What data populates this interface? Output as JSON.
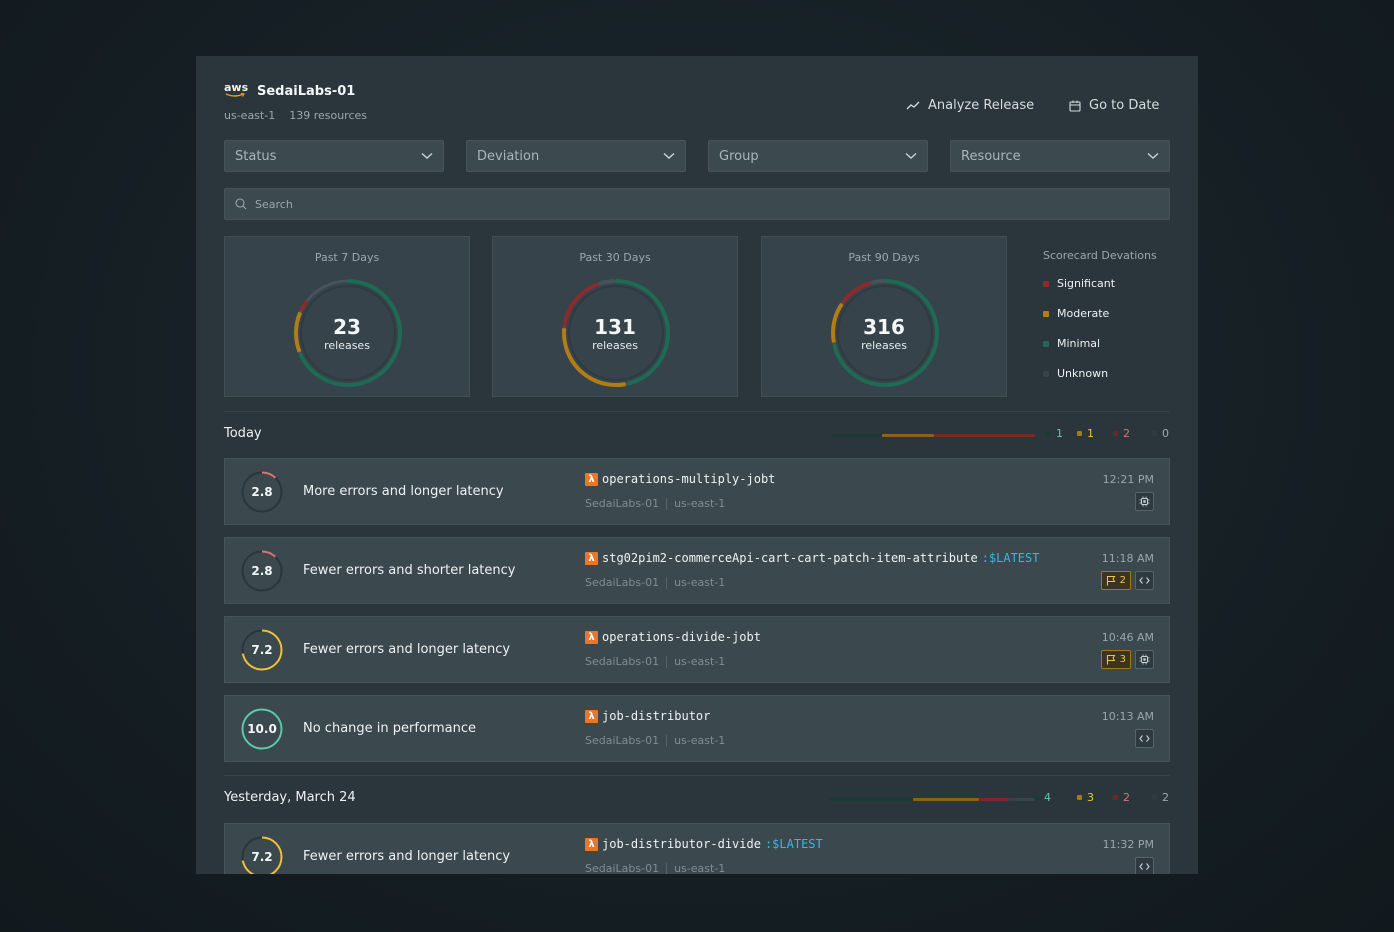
{
  "header": {
    "logo_text": "aws",
    "account_name": "SedaiLabs-01",
    "region": "us-east-1",
    "resources": "139 resources",
    "analyze_label": "Analyze Release",
    "goto_label": "Go to Date"
  },
  "filters": [
    {
      "label": "Status"
    },
    {
      "label": "Deviation"
    },
    {
      "label": "Group"
    },
    {
      "label": "Resource"
    }
  ],
  "search": {
    "placeholder": "Search"
  },
  "summary": [
    {
      "label": "Past 7 Days",
      "count": "23",
      "unit": "releases",
      "segments": {
        "minimal": 0.69,
        "moderate": 0.13,
        "significant": 0.04,
        "unknown": 0.0
      }
    },
    {
      "label": "Past 30 Days",
      "count": "131",
      "unit": "releases",
      "segments": {
        "minimal": 0.47,
        "moderate": 0.3,
        "significant": 0.18,
        "unknown": 0.05
      }
    },
    {
      "label": "Past 90 Days",
      "count": "316",
      "unit": "releases",
      "segments": {
        "minimal": 0.72,
        "moderate": 0.13,
        "significant": 0.11,
        "unknown": 0.04
      }
    }
  ],
  "legend": {
    "title": "Scorecard Devations",
    "items": [
      {
        "label": "Significant",
        "color": "#8b2b2b"
      },
      {
        "label": "Moderate",
        "color": "#b07d17"
      },
      {
        "label": "Minimal",
        "color": "#1e6b55"
      },
      {
        "label": "Unknown",
        "color": "#3a474d"
      }
    ]
  },
  "colors": {
    "significant": "#8b2b2b",
    "moderate": "#b07d17",
    "minimal": "#1e6b55",
    "unknown": "#45535a",
    "score_red": "#e0707a",
    "score_yellow": "#f0c23a",
    "score_green": "#5dc9ac"
  },
  "sections": [
    {
      "title": "Today",
      "counts": {
        "minimal": "1",
        "moderate": "1",
        "significant": "2",
        "unknown": "0"
      },
      "bar": {
        "minimal": 0.25,
        "moderate": 0.25,
        "significant": 0.5,
        "unknown": 0.0
      },
      "rows": [
        {
          "score": "2.8",
          "score_fraction": 0.28,
          "score_color": "red",
          "description": "More errors and longer latency",
          "function": "operations-multiply-jobt",
          "version": "",
          "account": "SedaiLabs-01",
          "region": "us-east-1",
          "time": "12:21 PM",
          "flags": "",
          "tag_icon": "chip-icon"
        },
        {
          "score": "2.8",
          "score_fraction": 0.28,
          "score_color": "red",
          "description": "Fewer errors and shorter latency",
          "function": "stg02pim2-commerceApi-cart-cart-patch-item-attribute",
          "version": ":$LATEST",
          "account": "SedaiLabs-01",
          "region": "us-east-1",
          "time": "11:18 AM",
          "flags": "2",
          "tag_icon": "code-icon"
        },
        {
          "score": "7.2",
          "score_fraction": 0.72,
          "score_color": "yellow",
          "description": "Fewer errors and longer latency",
          "function": "operations-divide-jobt",
          "version": "",
          "account": "SedaiLabs-01",
          "region": "us-east-1",
          "time": "10:46 AM",
          "flags": "3",
          "tag_icon": "chip-icon"
        },
        {
          "score": "10.0",
          "score_fraction": 1.0,
          "score_color": "green",
          "description": "No change in performance",
          "function": "job-distributor",
          "version": "",
          "account": "SedaiLabs-01",
          "region": "us-east-1",
          "time": "10:13 AM",
          "flags": "",
          "tag_icon": "code-icon"
        }
      ]
    },
    {
      "title": "Yesterday, March 24",
      "counts": {
        "minimal": "4",
        "moderate": "3",
        "significant": "2",
        "unknown": "2"
      },
      "bar": {
        "minimal": 0.4,
        "moderate": 0.3,
        "significant": 0.12,
        "unknown": 0.18
      },
      "rows": [
        {
          "score": "7.2",
          "score_fraction": 0.72,
          "score_color": "yellow",
          "description": "Fewer errors and longer latency",
          "function": "job-distributor-divide",
          "version": ":$LATEST",
          "account": "SedaiLabs-01",
          "region": "us-east-1",
          "time": "11:32 PM",
          "flags": "",
          "tag_icon": "code-icon"
        }
      ]
    }
  ]
}
